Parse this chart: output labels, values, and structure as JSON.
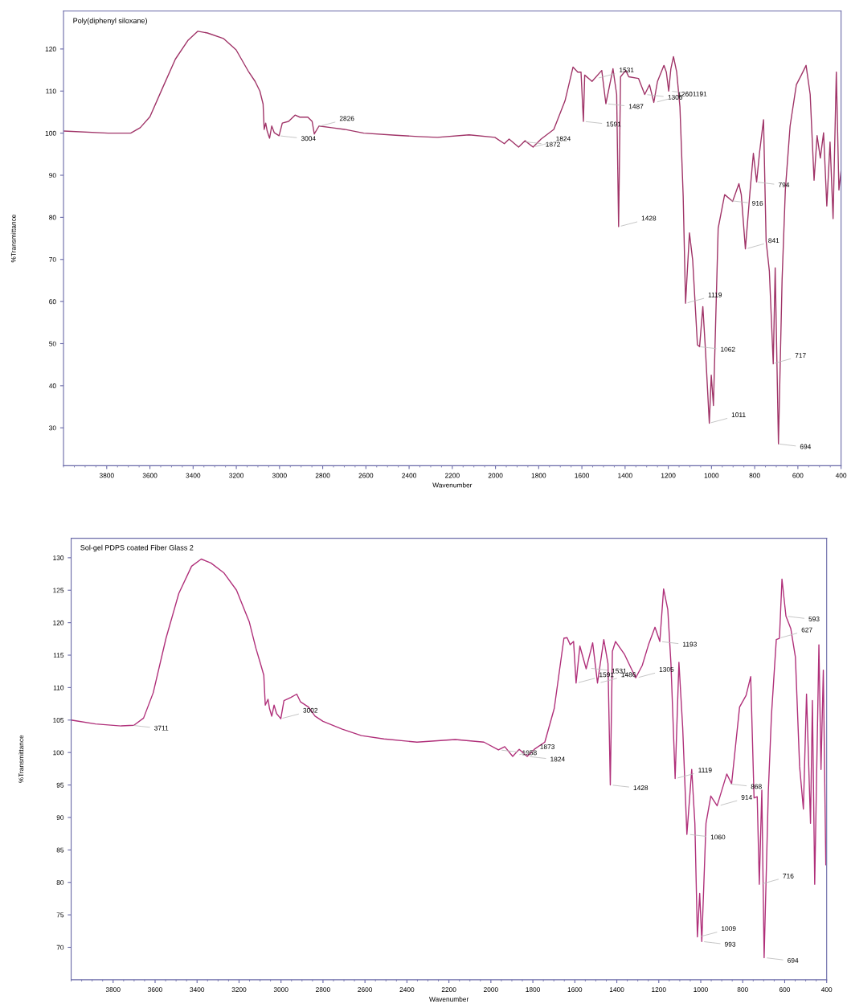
{
  "chart_data": [
    {
      "type": "line",
      "title": "Poly(diphenyl siloxane)",
      "xlabel": "Wavenumber",
      "ylabel": "%Transmittance",
      "xlim": [
        4000,
        400
      ],
      "ylim": [
        21,
        129
      ],
      "xticks": [
        3800,
        3600,
        3400,
        3200,
        3000,
        2800,
        2600,
        2400,
        2200,
        2000,
        1800,
        1600,
        1400,
        1200,
        1000,
        800,
        600,
        400
      ],
      "yticks": [
        30,
        40,
        50,
        60,
        70,
        80,
        90,
        100,
        110,
        120
      ],
      "grid": false,
      "series": [
        {
          "color": "#a03468",
          "x": [
            4000,
            3793,
            3689,
            3645,
            3600,
            3541,
            3482,
            3423,
            3379,
            3334,
            3260,
            3201,
            3142,
            3113,
            3091,
            3076,
            3071,
            3064,
            3057,
            3046,
            3036,
            3024,
            3002,
            2987,
            2958,
            2928,
            2906,
            2869,
            2849,
            2839,
            2817,
            2758,
            2699,
            2610,
            2462,
            2358,
            2269,
            2122,
            2003,
            1959,
            1937,
            1893,
            1863,
            1826,
            1789,
            1730,
            1678,
            1641,
            1619,
            1604,
            1593,
            1587,
            1553,
            1508,
            1489,
            1456,
            1439,
            1430,
            1421,
            1397,
            1383,
            1338,
            1309,
            1287,
            1267,
            1250,
            1220,
            1209,
            1198,
            1188,
            1176,
            1161,
            1146,
            1131,
            1120,
            1102,
            1087,
            1065,
            1055,
            1040,
            1028,
            1010,
            1001,
            991,
            969,
            939,
            902,
            873,
            862,
            843,
            821,
            806,
            791,
            777,
            759,
            747,
            732,
            714,
            705,
            690,
            673,
            658,
            636,
            607,
            584,
            562,
            543,
            525,
            511,
            496,
            481,
            466,
            451,
            437,
            422,
            410,
            400
          ],
          "values": [
            100.5,
            100.0,
            100.0,
            101.3,
            103.9,
            110.8,
            117.6,
            122.1,
            124.2,
            123.8,
            122.5,
            119.8,
            114.5,
            112.3,
            110.0,
            106.9,
            100.9,
            102.4,
            100.5,
            98.8,
            101.7,
            100.1,
            99.4,
            102.4,
            102.8,
            104.3,
            103.8,
            103.8,
            102.8,
            99.8,
            101.7,
            101.3,
            100.9,
            100.0,
            99.5,
            99.2,
            99.0,
            99.6,
            99.0,
            97.5,
            98.6,
            96.7,
            98.2,
            96.7,
            98.6,
            100.9,
            107.7,
            115.7,
            114.5,
            114.5,
            102.8,
            113.8,
            112.3,
            114.9,
            107.0,
            115.3,
            109.2,
            77.8,
            113.4,
            114.9,
            113.4,
            113.0,
            109.2,
            111.5,
            107.3,
            112.3,
            116.1,
            114.5,
            110.0,
            115.3,
            118.2,
            114.5,
            106.2,
            85.0,
            59.6,
            76.3,
            69.8,
            49.7,
            49.3,
            58.8,
            48.6,
            31.1,
            42.5,
            35.3,
            77.4,
            85.4,
            83.8,
            88.0,
            85.4,
            72.5,
            86.5,
            95.2,
            88.4,
            95.6,
            103.2,
            74.4,
            67.2,
            45.2,
            68.0,
            26.2,
            65.3,
            86.5,
            101.7,
            111.5,
            113.8,
            116.1,
            109.2,
            88.8,
            99.4,
            94.1,
            100.1,
            82.7,
            97.9,
            79.7,
            114.5,
            86.5,
            91.0
          ]
        }
      ],
      "annotations": [
        {
          "text": "3004",
          "x": 3004,
          "y": 99.4
        },
        {
          "text": "2826",
          "x": 2826,
          "y": 101.5
        },
        {
          "text": "1872",
          "x": 1872,
          "y": 98.0
        },
        {
          "text": "1824",
          "x": 1824,
          "y": 96.7
        },
        {
          "text": "1591",
          "x": 1591,
          "y": 102.8
        },
        {
          "text": "1531",
          "x": 1531,
          "y": 113.0
        },
        {
          "text": "1487",
          "x": 1487,
          "y": 107.0
        },
        {
          "text": "1428",
          "x": 1428,
          "y": 77.8
        },
        {
          "text": "1306",
          "x": 1306,
          "y": 109.2
        },
        {
          "text": "1260",
          "x": 1260,
          "y": 107.3
        },
        {
          "text": "1191",
          "x": 1191,
          "y": 110.0
        },
        {
          "text": "1119",
          "x": 1119,
          "y": 59.6
        },
        {
          "text": "1062",
          "x": 1062,
          "y": 49.3
        },
        {
          "text": "1011",
          "x": 1011,
          "y": 31.1
        },
        {
          "text": "916",
          "x": 916,
          "y": 84.0
        },
        {
          "text": "841",
          "x": 841,
          "y": 72.5
        },
        {
          "text": "794",
          "x": 794,
          "y": 88.4
        },
        {
          "text": "717",
          "x": 717,
          "y": 45.2
        },
        {
          "text": "694",
          "x": 694,
          "y": 26.2
        }
      ]
    },
    {
      "type": "line",
      "title": "Sol-gel PDPS coated Fiber Glass 2",
      "xlabel": "Wavenumber",
      "ylabel": "%Transmittance",
      "xlim": [
        4000,
        400
      ],
      "ylim": [
        65,
        133
      ],
      "xticks": [
        3800,
        3600,
        3400,
        3200,
        3000,
        2800,
        2600,
        2400,
        2200,
        2000,
        1800,
        1600,
        1400,
        1200,
        1000,
        800,
        600,
        400
      ],
      "yticks": [
        70,
        75,
        80,
        85,
        90,
        95,
        100,
        105,
        110,
        115,
        120,
        125,
        130
      ],
      "grid": false,
      "series": [
        {
          "color": "#b0307a",
          "x": [
            4000,
            3884,
            3762,
            3701,
            3655,
            3609,
            3548,
            3487,
            3426,
            3380,
            3334,
            3273,
            3212,
            3151,
            3120,
            3098,
            3082,
            3075,
            3062,
            3055,
            3044,
            3033,
            3021,
            3001,
            2986,
            2953,
            2925,
            2907,
            2869,
            2838,
            2800,
            2708,
            2617,
            2510,
            2352,
            2170,
            2033,
            1964,
            1934,
            1896,
            1865,
            1827,
            1789,
            1743,
            1698,
            1652,
            1637,
            1622,
            1606,
            1594,
            1576,
            1546,
            1515,
            1492,
            1462,
            1442,
            1431,
            1421,
            1406,
            1363,
            1310,
            1279,
            1249,
            1218,
            1195,
            1177,
            1157,
            1142,
            1122,
            1104,
            1086,
            1066,
            1043,
            1028,
            1016,
            1005,
            995,
            975,
            952,
            922,
            876,
            853,
            815,
            784,
            762,
            746,
            731,
            721,
            709,
            698,
            678,
            663,
            640,
            625,
            613,
            594,
            571,
            549,
            529,
            511,
            496,
            477,
            468,
            457,
            437,
            427,
            416,
            404
          ],
          "values": [
            105.0,
            104.4,
            104.1,
            104.2,
            105.3,
            109.2,
            117.6,
            124.5,
            128.7,
            129.8,
            129.2,
            127.7,
            125.0,
            120.1,
            116.1,
            113.7,
            111.9,
            107.3,
            108.2,
            106.8,
            105.6,
            107.3,
            106.0,
            105.2,
            108.0,
            108.5,
            109.0,
            107.8,
            107.0,
            105.6,
            104.8,
            103.6,
            102.6,
            102.1,
            101.6,
            102.0,
            101.6,
            100.4,
            100.9,
            99.4,
            100.5,
            99.4,
            100.6,
            101.6,
            106.8,
            117.6,
            117.7,
            116.6,
            117.1,
            110.7,
            116.4,
            112.9,
            116.9,
            110.7,
            117.4,
            113.7,
            95.0,
            115.6,
            117.1,
            115.1,
            111.5,
            113.4,
            116.6,
            119.3,
            117.1,
            125.2,
            122.0,
            113.7,
            96.0,
            113.9,
            103.8,
            87.4,
            97.4,
            89.1,
            71.6,
            78.3,
            70.9,
            89.1,
            93.3,
            91.8,
            96.7,
            95.2,
            107.0,
            108.8,
            111.7,
            93.0,
            93.2,
            79.7,
            94.2,
            68.4,
            94.0,
            105.8,
            117.4,
            117.6,
            126.7,
            121.0,
            119.1,
            114.7,
            97.9,
            91.3,
            109.0,
            89.1,
            108.0,
            79.7,
            116.6,
            97.4,
            112.7,
            82.7
          ]
        }
      ],
      "annotations": [
        {
          "text": "3711",
          "x": 3711,
          "y": 104.2
        },
        {
          "text": "3002",
          "x": 3002,
          "y": 105.2
        },
        {
          "text": "1958",
          "x": 1958,
          "y": 100.4
        },
        {
          "text": "1873",
          "x": 1873,
          "y": 99.6
        },
        {
          "text": "1824",
          "x": 1824,
          "y": 99.4
        },
        {
          "text": "1591",
          "x": 1591,
          "y": 110.7
        },
        {
          "text": "1531",
          "x": 1531,
          "y": 113.0
        },
        {
          "text": "1486",
          "x": 1486,
          "y": 110.7
        },
        {
          "text": "1428",
          "x": 1428,
          "y": 95.0
        },
        {
          "text": "1305",
          "x": 1305,
          "y": 111.5
        },
        {
          "text": "1193",
          "x": 1193,
          "y": 117.1
        },
        {
          "text": "1119",
          "x": 1119,
          "y": 96.0
        },
        {
          "text": "1060",
          "x": 1060,
          "y": 87.4
        },
        {
          "text": "1009",
          "x": 1009,
          "y": 71.6
        },
        {
          "text": "993",
          "x": 993,
          "y": 70.9
        },
        {
          "text": "914",
          "x": 914,
          "y": 91.8
        },
        {
          "text": "868",
          "x": 868,
          "y": 95.2
        },
        {
          "text": "716",
          "x": 716,
          "y": 79.7
        },
        {
          "text": "694",
          "x": 694,
          "y": 68.4
        },
        {
          "text": "627",
          "x": 627,
          "y": 117.6
        },
        {
          "text": "593",
          "x": 593,
          "y": 121.0
        }
      ]
    }
  ]
}
